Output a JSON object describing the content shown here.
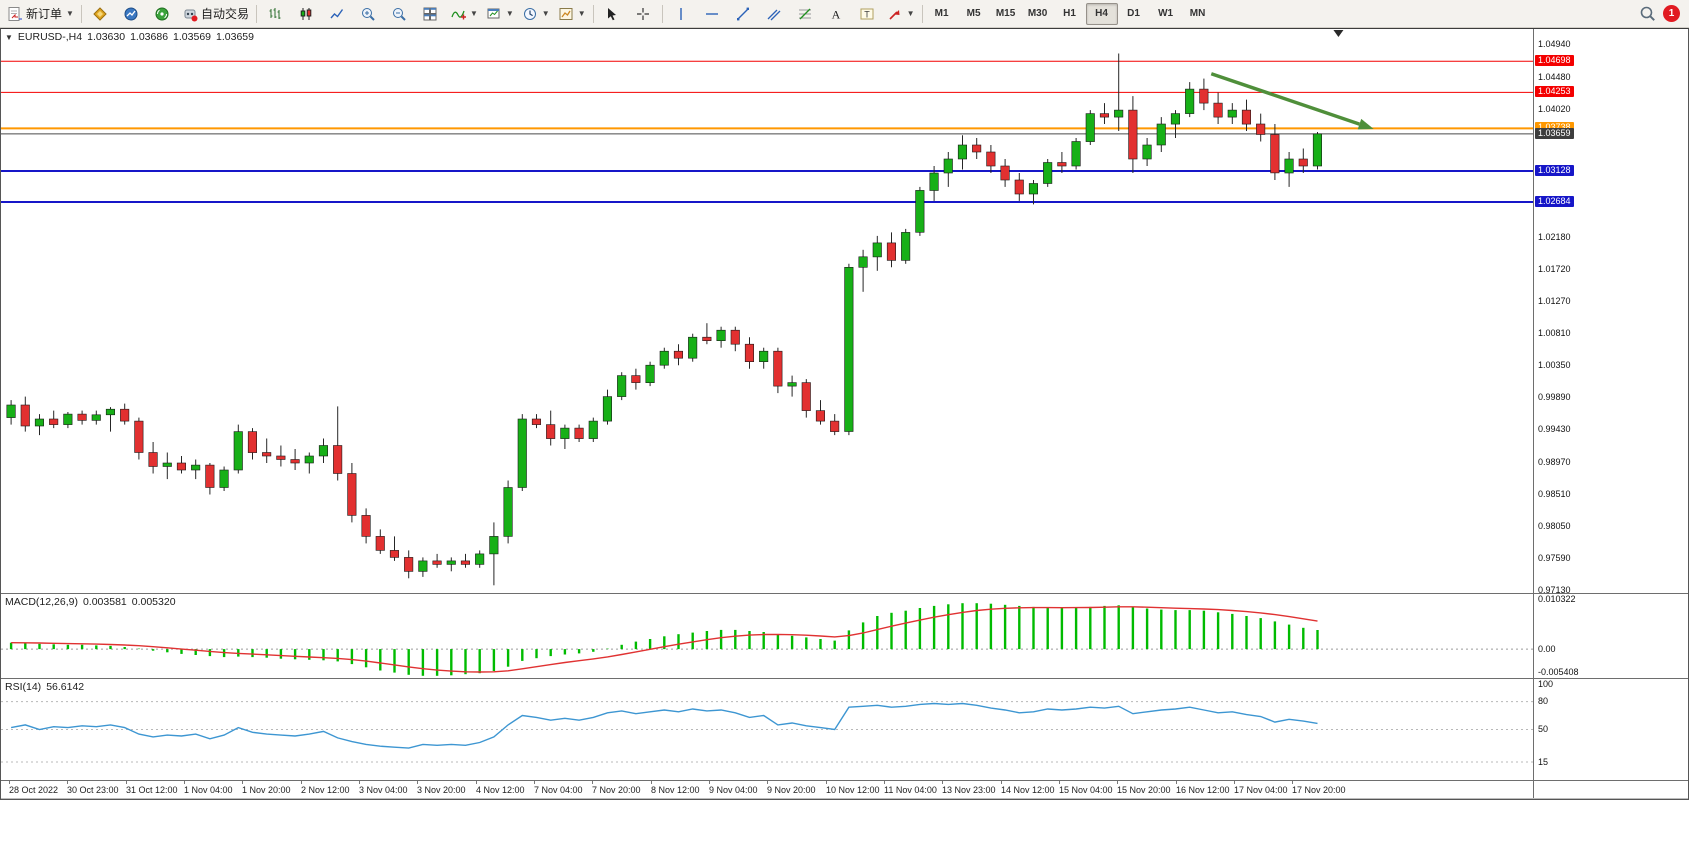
{
  "toolbar": {
    "new_order_label": "新订单",
    "autotrading_label": "自动交易",
    "timeframes": [
      "M1",
      "M5",
      "M15",
      "M30",
      "H1",
      "H4",
      "D1",
      "W1",
      "MN"
    ],
    "active_timeframe": "H4",
    "notification_count": "1",
    "icons": {
      "new-order": "document-with-arrows",
      "expert-advisors": "gold-diamond",
      "market-watch": "blue-globe",
      "navigator": "green-signal",
      "autotrading": "red-dot-robot",
      "bar-chart": "ohlc-bars",
      "candlestick-chart": "candles",
      "line-chart": "zigzag",
      "zoom-in": "magnifier-plus",
      "zoom-out": "magnifier-minus",
      "tile-windows": "grid",
      "indicators": "squiggle-plus",
      "new-chart": "chart-plus",
      "periods": "clock",
      "templates": "palette",
      "cursor": "arrow-pointer",
      "crosshair": "cross",
      "vertical-line": "|",
      "horizontal-line": "—",
      "trendline": "/",
      "equidistant-channel": "//",
      "fibonacci": "fib-lines",
      "text": "A",
      "text-label": "T",
      "arrows-tool": "red-arrow",
      "search": "magnifier",
      "notification": "red-circle-1"
    }
  },
  "chart": {
    "symbol": "EURUSD-,H4",
    "open": "1.03630",
    "high": "1.03686",
    "low": "1.03569",
    "close": "1.03659"
  },
  "macd": {
    "label": "MACD(12,26,9)",
    "main_value": "0.003581",
    "signal_value": "0.005320",
    "axis_max": "0.010322",
    "axis_zero": "0.00",
    "axis_min": "-0.005408"
  },
  "rsi": {
    "label": "RSI(14)",
    "value": "56.6142",
    "levels": [
      "100",
      "80",
      "50",
      "15"
    ]
  },
  "chart_data": {
    "type": "candlestick",
    "symbol": "EURUSD",
    "timeframe": "H4",
    "price_axis": {
      "min": 0.9709,
      "max": 1.0516,
      "ticks": [
        1.0494,
        1.0448,
        1.0402,
        1.0218,
        1.0172,
        1.0127,
        1.0081,
        1.0035,
        0.9989,
        0.9943,
        0.9897,
        0.9851,
        0.9805,
        0.9759,
        0.9713
      ]
    },
    "x_labels": [
      "28 Oct 2022",
      "30 Oct 23:00",
      "31 Oct 12:00",
      "1 Nov 04:00",
      "1 Nov 20:00",
      "2 Nov 12:00",
      "3 Nov 04:00",
      "3 Nov 20:00",
      "4 Nov 12:00",
      "7 Nov 04:00",
      "7 Nov 20:00",
      "8 Nov 12:00",
      "9 Nov 04:00",
      "9 Nov 20:00",
      "10 Nov 12:00",
      "11 Nov 04:00",
      "13 Nov 23:00",
      "14 Nov 12:00",
      "15 Nov 04:00",
      "15 Nov 20:00",
      "16 Nov 12:00",
      "17 Nov 04:00",
      "17 Nov 20:00"
    ],
    "candles": [
      [
        0.996,
        0.9985,
        0.995,
        0.9978
      ],
      [
        0.9978,
        0.999,
        0.994,
        0.9948
      ],
      [
        0.9948,
        0.9965,
        0.9935,
        0.9958
      ],
      [
        0.9958,
        0.997,
        0.9945,
        0.995
      ],
      [
        0.995,
        0.9968,
        0.9945,
        0.9965
      ],
      [
        0.9965,
        0.997,
        0.995,
        0.9956
      ],
      [
        0.9956,
        0.997,
        0.995,
        0.9964
      ],
      [
        0.9964,
        0.9975,
        0.994,
        0.9972
      ],
      [
        0.9972,
        0.998,
        0.995,
        0.9955
      ],
      [
        0.9955,
        0.996,
        0.99,
        0.991
      ],
      [
        0.991,
        0.9925,
        0.988,
        0.989
      ],
      [
        0.989,
        0.991,
        0.9872,
        0.9895
      ],
      [
        0.9895,
        0.9905,
        0.988,
        0.9885
      ],
      [
        0.9885,
        0.99,
        0.9872,
        0.9892
      ],
      [
        0.9892,
        0.9895,
        0.985,
        0.986
      ],
      [
        0.986,
        0.989,
        0.9855,
        0.9885
      ],
      [
        0.9885,
        0.995,
        0.988,
        0.994
      ],
      [
        0.994,
        0.9945,
        0.99,
        0.991
      ],
      [
        0.991,
        0.993,
        0.9895,
        0.9905
      ],
      [
        0.9905,
        0.992,
        0.989,
        0.99
      ],
      [
        0.99,
        0.9915,
        0.9885,
        0.9895
      ],
      [
        0.9895,
        0.991,
        0.988,
        0.9905
      ],
      [
        0.9905,
        0.993,
        0.9895,
        0.992
      ],
      [
        0.992,
        0.9976,
        0.987,
        0.988
      ],
      [
        0.988,
        0.9895,
        0.981,
        0.982
      ],
      [
        0.982,
        0.983,
        0.978,
        0.979
      ],
      [
        0.979,
        0.98,
        0.9765,
        0.977
      ],
      [
        0.977,
        0.979,
        0.9755,
        0.976
      ],
      [
        0.976,
        0.977,
        0.973,
        0.974
      ],
      [
        0.974,
        0.976,
        0.9732,
        0.9755
      ],
      [
        0.9755,
        0.9765,
        0.9745,
        0.975
      ],
      [
        0.975,
        0.976,
        0.974,
        0.9755
      ],
      [
        0.9755,
        0.9765,
        0.9745,
        0.975
      ],
      [
        0.975,
        0.977,
        0.9745,
        0.9765
      ],
      [
        0.9765,
        0.981,
        0.972,
        0.979
      ],
      [
        0.979,
        0.987,
        0.978,
        0.986
      ],
      [
        0.986,
        0.9965,
        0.9855,
        0.9958
      ],
      [
        0.9958,
        0.9965,
        0.9945,
        0.995
      ],
      [
        0.995,
        0.997,
        0.992,
        0.993
      ],
      [
        0.993,
        0.995,
        0.9915,
        0.9945
      ],
      [
        0.9945,
        0.995,
        0.9925,
        0.993
      ],
      [
        0.993,
        0.996,
        0.9925,
        0.9955
      ],
      [
        0.9955,
        1.0,
        0.995,
        0.999
      ],
      [
        0.999,
        1.0025,
        0.9985,
        1.002
      ],
      [
        1.002,
        1.003,
        1.0,
        1.001
      ],
      [
        1.001,
        1.004,
        1.0005,
        1.0035
      ],
      [
        1.0035,
        1.006,
        1.003,
        1.0055
      ],
      [
        1.0055,
        1.0065,
        1.0035,
        1.0045
      ],
      [
        1.0045,
        1.008,
        1.004,
        1.0075
      ],
      [
        1.0075,
        1.0095,
        1.0065,
        1.007
      ],
      [
        1.007,
        1.009,
        1.006,
        1.0085
      ],
      [
        1.0085,
        1.009,
        1.0055,
        1.0065
      ],
      [
        1.0065,
        1.0075,
        1.003,
        1.004
      ],
      [
        1.004,
        1.006,
        1.003,
        1.0055
      ],
      [
        1.0055,
        1.006,
        0.9995,
        1.0005
      ],
      [
        1.0005,
        1.002,
        0.999,
        1.001
      ],
      [
        1.001,
        1.0015,
        0.996,
        0.997
      ],
      [
        0.997,
        0.9985,
        0.995,
        0.9955
      ],
      [
        0.9955,
        0.9965,
        0.9935,
        0.994
      ],
      [
        0.994,
        1.018,
        0.9935,
        1.0175
      ],
      [
        1.0175,
        1.02,
        1.014,
        1.019
      ],
      [
        1.019,
        1.022,
        1.017,
        1.021
      ],
      [
        1.021,
        1.0225,
        1.0175,
        1.0185
      ],
      [
        1.0185,
        1.023,
        1.018,
        1.0225
      ],
      [
        1.0225,
        1.029,
        1.022,
        1.0285
      ],
      [
        1.0285,
        1.032,
        1.027,
        1.031
      ],
      [
        1.031,
        1.034,
        1.029,
        1.033
      ],
      [
        1.033,
        1.0364,
        1.0315,
        1.035
      ],
      [
        1.035,
        1.036,
        1.033,
        1.034
      ],
      [
        1.034,
        1.035,
        1.031,
        1.032
      ],
      [
        1.032,
        1.033,
        1.029,
        1.03
      ],
      [
        1.03,
        1.031,
        1.027,
        1.028
      ],
      [
        1.028,
        1.03,
        1.0265,
        1.0295
      ],
      [
        1.0295,
        1.033,
        1.029,
        1.0325
      ],
      [
        1.0325,
        1.034,
        1.031,
        1.032
      ],
      [
        1.032,
        1.036,
        1.0315,
        1.0355
      ],
      [
        1.0355,
        1.04,
        1.035,
        1.0395
      ],
      [
        1.0395,
        1.041,
        1.038,
        1.039
      ],
      [
        1.039,
        1.0481,
        1.037,
        1.04
      ],
      [
        1.04,
        1.042,
        1.031,
        1.033
      ],
      [
        1.033,
        1.036,
        1.032,
        1.035
      ],
      [
        1.035,
        1.039,
        1.034,
        1.038
      ],
      [
        1.038,
        1.04,
        1.036,
        1.0395
      ],
      [
        1.0395,
        1.044,
        1.039,
        1.043
      ],
      [
        1.043,
        1.0445,
        1.04,
        1.041
      ],
      [
        1.041,
        1.0425,
        1.038,
        1.039
      ],
      [
        1.039,
        1.041,
        1.038,
        1.04
      ],
      [
        1.04,
        1.0415,
        1.037,
        1.038
      ],
      [
        1.038,
        1.0395,
        1.0355,
        1.0365
      ],
      [
        1.0365,
        1.038,
        1.03,
        1.031
      ],
      [
        1.031,
        1.034,
        1.029,
        1.033
      ],
      [
        1.033,
        1.0345,
        1.031,
        1.032
      ],
      [
        1.032,
        1.03686,
        1.0315,
        1.03659
      ]
    ],
    "hlines": [
      {
        "price": 1.04698,
        "label": "1.04698",
        "color": "#f40000",
        "width": 1
      },
      {
        "price": 1.04253,
        "label": "1.04253",
        "color": "#f40000",
        "width": 1
      },
      {
        "price": 1.03738,
        "label": "1.03738",
        "color": "#ff9800",
        "width": 2
      },
      {
        "price": 1.03128,
        "label": "1.03128",
        "color": "#1616c8",
        "width": 2
      },
      {
        "price": 1.02684,
        "label": "1.02684",
        "color": "#1616c8",
        "width": 2
      }
    ],
    "current_price": {
      "price": 1.03659,
      "label": "1.03659",
      "bg": "#3e3e3e",
      "line_color": "#4a4a4a"
    },
    "trend_arrow": {
      "x1": 0.79,
      "price1": 1.0452,
      "x2": 0.896,
      "price2": 1.0373,
      "color": "#4f8f3a",
      "width": 3.5
    },
    "shift_marker_x": 0.873,
    "colors": {
      "bull": "#17b017",
      "bear": "#e23030",
      "wick": "#262626",
      "outline": "#1a1a1a",
      "background": "#ffffff"
    },
    "macd": {
      "max": 0.010322,
      "min": -0.005408,
      "histogram_color": "#00bb00",
      "signal_color": "#e03232",
      "signal_period": 9,
      "histogram": [
        0.0012,
        0.0011,
        0.001,
        0.0009,
        0.0008,
        0.0008,
        0.0007,
        0.0006,
        0.0004,
        0.0001,
        -0.0003,
        -0.0006,
        -0.0009,
        -0.0011,
        -0.0013,
        -0.0015,
        -0.0014,
        -0.0015,
        -0.0016,
        -0.0018,
        -0.0019,
        -0.002,
        -0.0021,
        -0.0023,
        -0.0028,
        -0.0034,
        -0.004,
        -0.0044,
        -0.0048,
        -0.005,
        -0.005,
        -0.0049,
        -0.0047,
        -0.0045,
        -0.0041,
        -0.0033,
        -0.0022,
        -0.0017,
        -0.0013,
        -0.001,
        -0.0008,
        -0.0005,
        0.0001,
        0.0008,
        0.0014,
        0.0019,
        0.0024,
        0.0028,
        0.0031,
        0.0034,
        0.0036,
        0.0036,
        0.0034,
        0.0032,
        0.0028,
        0.0025,
        0.0022,
        0.0019,
        0.0016,
        0.0035,
        0.005,
        0.0062,
        0.0068,
        0.0072,
        0.0077,
        0.0081,
        0.0084,
        0.0086,
        0.0086,
        0.0085,
        0.0083,
        0.0081,
        0.0079,
        0.0078,
        0.0077,
        0.0078,
        0.0079,
        0.0081,
        0.0082,
        0.0079,
        0.0076,
        0.0074,
        0.0073,
        0.0073,
        0.0072,
        0.0069,
        0.0066,
        0.0062,
        0.0058,
        0.0052,
        0.0046,
        0.004,
        0.003581
      ]
    },
    "rsi": {
      "color": "#3d96d2",
      "levels": [
        80,
        50,
        15
      ],
      "values": [
        52,
        55,
        50,
        53,
        52,
        54,
        53,
        55,
        52,
        45,
        42,
        44,
        43,
        45,
        40,
        44,
        52,
        47,
        45,
        44,
        43,
        45,
        48,
        41,
        37,
        34,
        32,
        31,
        30,
        34,
        33,
        34,
        33,
        36,
        42,
        55,
        65,
        63,
        60,
        62,
        60,
        63,
        68,
        70,
        67,
        69,
        71,
        69,
        72,
        70,
        71,
        68,
        63,
        65,
        55,
        57,
        54,
        52,
        50,
        74,
        75,
        76,
        74,
        75,
        77,
        78,
        77,
        78,
        76,
        73,
        71,
        68,
        69,
        72,
        71,
        72,
        74,
        73,
        75,
        67,
        69,
        71,
        72,
        74,
        71,
        68,
        69,
        66,
        64,
        58,
        61,
        59,
        56.6
      ]
    }
  }
}
